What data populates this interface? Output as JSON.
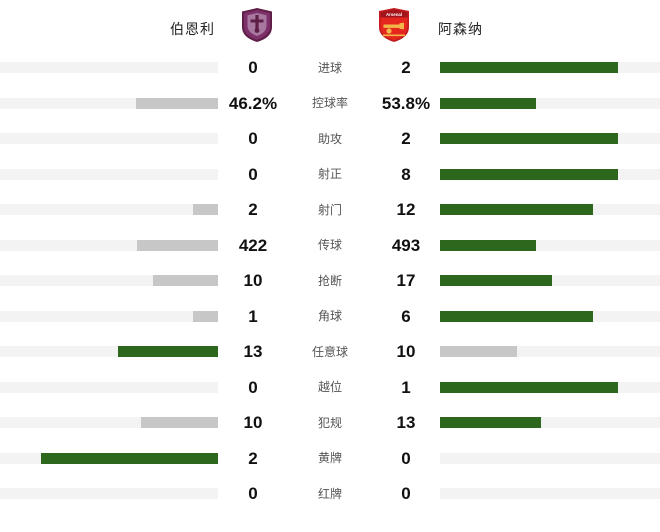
{
  "header": {
    "home_team": "伯恩利",
    "away_team": "阿森纳",
    "home_crest_icon": "burnley-crest",
    "away_crest_icon": "arsenal-crest"
  },
  "colors": {
    "win_bar": "#2c671d",
    "lose_bar": "#c7c7c7",
    "track": "#f3f3f3"
  },
  "chart_data": {
    "type": "bar",
    "categories": [
      "进球",
      "控球率",
      "助攻",
      "射正",
      "射门",
      "传球",
      "抢断",
      "角球",
      "任意球",
      "越位",
      "犯规",
      "黄牌",
      "红牌"
    ],
    "series": [
      {
        "name": "伯恩利",
        "values": [
          0,
          46.2,
          0,
          0,
          2,
          422,
          10,
          1,
          13,
          0,
          10,
          2,
          0
        ],
        "display": [
          "0",
          "46.2%",
          "0",
          "0",
          "2",
          "422",
          "10",
          "1",
          "13",
          "0",
          "10",
          "2",
          "0"
        ]
      },
      {
        "name": "阿森纳",
        "values": [
          2,
          53.8,
          2,
          8,
          12,
          493,
          17,
          6,
          10,
          1,
          13,
          0,
          0
        ],
        "display": [
          "2",
          "53.8%",
          "2",
          "8",
          "12",
          "493",
          "17",
          "6",
          "10",
          "1",
          "13",
          "0",
          "0"
        ]
      }
    ],
    "bar_max_fraction": 0.81,
    "legend": "none",
    "grid": "off"
  }
}
